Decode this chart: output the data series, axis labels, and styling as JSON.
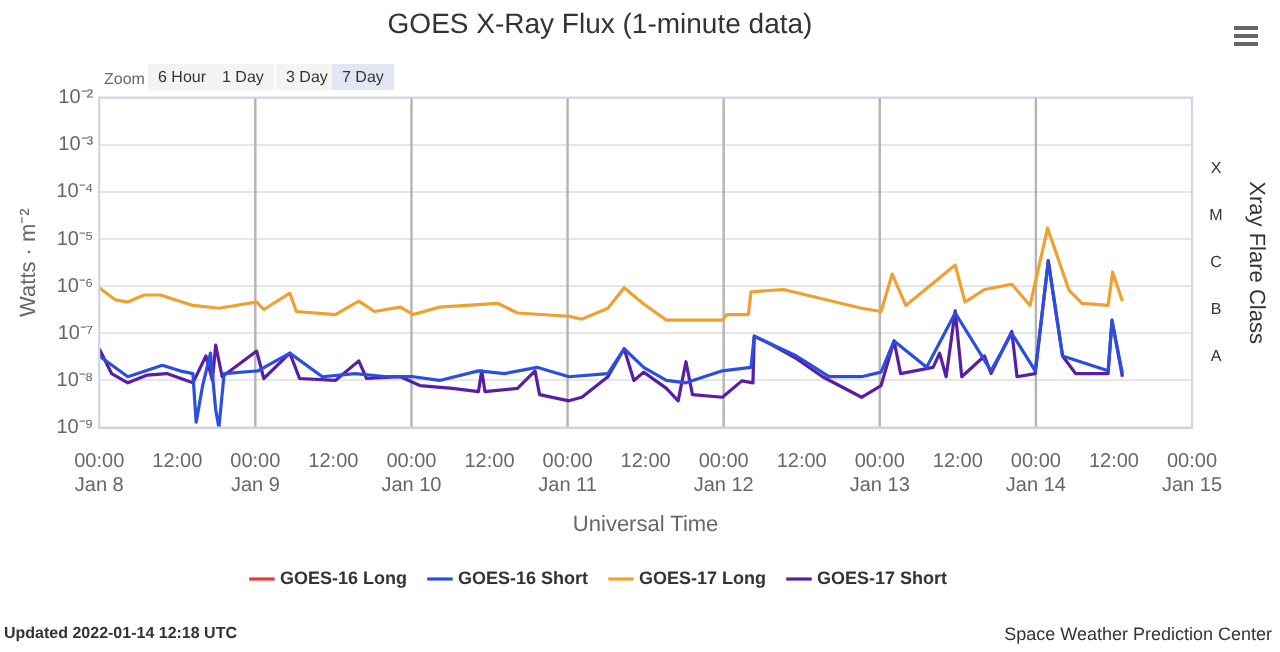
{
  "chart_data": {
    "type": "line",
    "title": "GOES X-Ray Flux (1-minute data)",
    "xlabel": "Universal Time",
    "ylabel": "Watts · m⁻²",
    "y2label": "Xray Flare Class",
    "xlim": [
      "--01-08T00:00",
      "--01-15T00:00"
    ],
    "xticks": [
      {
        "value": "--01-08T00:00",
        "label": "00:00\nJan 8"
      },
      {
        "value": "--01-08T12:00",
        "label": "12:00"
      },
      {
        "value": "--01-09T00:00",
        "label": "00:00\nJan 9"
      },
      {
        "value": "--01-09T12:00",
        "label": "12:00"
      },
      {
        "value": "--01-10T00:00",
        "label": "00:00\nJan 10"
      },
      {
        "value": "--01-10T12:00",
        "label": "12:00"
      },
      {
        "value": "--01-11T00:00",
        "label": "00:00\nJan 11"
      },
      {
        "value": "--01-11T12:00",
        "label": "12:00"
      },
      {
        "value": "--01-12T00:00",
        "label": "00:00\nJan 12"
      },
      {
        "value": "--01-12T12:00",
        "label": "12:00"
      },
      {
        "value": "--01-13T00:00",
        "label": "00:00\nJan 13"
      },
      {
        "value": "--01-13T12:00",
        "label": "12:00"
      },
      {
        "value": "--01-14T00:00",
        "label": "00:00\nJan 14"
      },
      {
        "value": "--01-14T12:00",
        "label": "12:00"
      },
      {
        "value": "--01-15T00:00",
        "label": "00:00\nJan 15"
      }
    ],
    "ylim": [
      1e-09,
      0.01
    ],
    "yticks": [
      {
        "value": 1e-09,
        "label": "10⁻⁹"
      },
      {
        "value": 1e-08,
        "label": "10⁻⁸"
      },
      {
        "value": 1e-07,
        "label": "10⁻⁷"
      },
      {
        "value": 1e-06,
        "label": "10⁻⁶"
      },
      {
        "value": 1e-05,
        "label": "10⁻⁵"
      },
      {
        "value": 0.0001,
        "label": "10⁻⁴"
      },
      {
        "value": 0.001,
        "label": "10⁻³"
      },
      {
        "value": 0.01,
        "label": "10⁻²"
      }
    ],
    "log": "y",
    "grid": "y",
    "legend": "bottom",
    "marker": "none",
    "ref_lines": [
      {
        "axis": "x",
        "value": "--01-09T00:00",
        "color": "#b4b4b4"
      },
      {
        "axis": "x",
        "value": "--01-10T00:00",
        "color": "#b4b4b4"
      },
      {
        "axis": "x",
        "value": "--01-11T00:00",
        "color": "#b4b4b4"
      },
      {
        "axis": "x",
        "value": "--01-12T00:00",
        "color": "#b4b4b4"
      },
      {
        "axis": "x",
        "value": "--01-13T00:00",
        "color": "#b4b4b4"
      },
      {
        "axis": "x",
        "value": "--01-14T00:00",
        "color": "#b4b4b4"
      }
    ],
    "annotations": [
      "Zoom",
      "6 Hour",
      "1 Day",
      "3 Day",
      "7 Day",
      "Updated 2022-01-14 12:18 UTC",
      "Space Weather Prediction Center",
      "A",
      "B",
      "C",
      "M",
      "X"
    ],
    "series": [
      {
        "name": "GOES-16 Long",
        "color": "#e83a3a"
      },
      {
        "name": "GOES-16 Short",
        "color": "#2a4ee0",
        "x": [
          "--01-08T00:00",
          "--01-08T04:24",
          "--01-08T09:42",
          "--01-08T12:24",
          "--01-08T14:24",
          "--01-08T14:54",
          "--01-08T15:54",
          "--01-08T17:06",
          "--01-08T17:54",
          "--01-08T18:24",
          "--01-08T19:12",
          "--01-09T00:24",
          "--01-09T05:18",
          "--01-09T10:18",
          "--01-09T15:18",
          "--01-09T20:18",
          "--01-10T00:18",
          "--01-10T04:18",
          "--01-10T10:18",
          "--01-10T14:18",
          "--01-10T19:18",
          "--01-11T00:12",
          "--01-11T06:12",
          "--01-11T08:42",
          "--01-11T11:42",
          "--01-11T15:12",
          "--01-11T18:12",
          "--01-11T23:48",
          "--01-12T04:12",
          "--01-12T04:42",
          "--01-12T11:12",
          "--01-12T16:12",
          "--01-12T21:12",
          "--01-13T00:12",
          "--01-13T02:12",
          "--01-13T07:12",
          "--01-13T11:36",
          "--01-13T17:06",
          "--01-13T20:18",
          "--01-13T23:54",
          "--01-14T01:54",
          "--01-14T04:06",
          "--01-14T11:06",
          "--01-14T11:42",
          "--01-14T13:18"
        ],
        "values": [
          3.3e-08,
          1.2e-08,
          2.1e-08,
          1.6e-08,
          1.4e-08,
          1.3e-09,
          7.8e-09,
          3.8e-08,
          2.4e-09,
          1e-09,
          1.4e-08,
          1.6e-08,
          3.8e-08,
          1.2e-08,
          1.4e-08,
          1.2e-08,
          1.2e-08,
          1e-08,
          1.6e-08,
          1.4e-08,
          1.9e-08,
          1.2e-08,
          1.4e-08,
          4.7e-08,
          1.9e-08,
          1e-08,
          8.9e-09,
          1.6e-08,
          1.9e-08,
          8.7e-08,
          3.3e-08,
          1.2e-08,
          1.2e-08,
          1.5e-08,
          6.9e-08,
          1.9e-08,
          2.7e-07,
          1.6e-08,
          1e-07,
          1.6e-08,
          3.3e-06,
          3.3e-08,
          1.6e-08,
          1.8e-07,
          1.4e-08
        ]
      },
      {
        "name": "GOES-17 Long",
        "color": "#f0a030",
        "x": [
          "--01-08T00:00",
          "--01-08T02:24",
          "--01-08T04:24",
          "--01-08T06:54",
          "--01-08T09:24",
          "--01-08T14:24",
          "--01-08T18:24",
          "--01-09T00:12",
          "--01-09T01:18",
          "--01-09T05:18",
          "--01-09T06:18",
          "--01-09T12:18",
          "--01-09T15:54",
          "--01-09T18:18",
          "--01-09T22:18",
          "--01-10T00:18",
          "--01-10T04:18",
          "--01-10T13:18",
          "--01-10T16:18",
          "--01-11T00:12",
          "--01-11T02:12",
          "--01-11T06:12",
          "--01-11T08:42",
          "--01-11T11:42",
          "--01-11T15:12",
          "--01-11T23:48",
          "--01-12T00:30",
          "--01-12T03:48",
          "--01-12T04:12",
          "--01-12T09:12",
          "--01-12T21:12",
          "--01-13T00:12",
          "--01-13T01:54",
          "--01-13T04:00",
          "--01-13T11:36",
          "--01-13T13:06",
          "--01-13T16:06",
          "--01-13T20:18",
          "--01-13T23:06",
          "--01-14T01:48",
          "--01-14T05:06",
          "--01-14T07:06",
          "--01-14T11:06",
          "--01-14T11:48",
          "--01-14T13:18"
        ],
        "values": [
          9.3e-07,
          5.2e-07,
          4.6e-07,
          6.5e-07,
          6.5e-07,
          3.9e-07,
          3.4e-07,
          4.6e-07,
          3.2e-07,
          7.1e-07,
          2.9e-07,
          2.5e-07,
          4.8e-07,
          2.9e-07,
          3.6e-07,
          2.5e-07,
          3.6e-07,
          4.3e-07,
          2.7e-07,
          2.3e-07,
          2e-07,
          3.4e-07,
          9.3e-07,
          4.2e-07,
          1.9e-07,
          1.9e-07,
          2.5e-07,
          2.5e-07,
          7.6e-07,
          8.5e-07,
          3.4e-07,
          2.9e-07,
          1.8e-06,
          3.9e-07,
          2.8e-06,
          4.6e-07,
          8.5e-07,
          1.1e-06,
          3.9e-07,
          1.7e-05,
          8.1e-07,
          4.3e-07,
          3.9e-07,
          2e-06,
          4.8e-07
        ]
      },
      {
        "name": "GOES-17 Short",
        "color": "#5a1ea6",
        "x": [
          "--01-08T00:00",
          "--01-08T01:54",
          "--01-08T04:24",
          "--01-08T07:24",
          "--01-08T10:24",
          "--01-08T14:24",
          "--01-08T16:24",
          "--01-08T17:24",
          "--01-08T17:54",
          "--01-08T18:54",
          "--01-09T00:12",
          "--01-09T01:18",
          "--01-09T05:18",
          "--01-09T06:48",
          "--01-09T12:18",
          "--01-09T15:54",
          "--01-09T17:06",
          "--01-09T22:18",
          "--01-10T01:18",
          "--01-10T06:18",
          "--01-10T10:18",
          "--01-10T10:48",
          "--01-10T11:18",
          "--01-10T16:18",
          "--01-10T19:00",
          "--01-10T19:42",
          "--01-11T00:12",
          "--01-11T02:12",
          "--01-11T06:12",
          "--01-11T08:42",
          "--01-11T10:12",
          "--01-11T11:42",
          "--01-11T15:12",
          "--01-11T17:00",
          "--01-11T18:12",
          "--01-11T19:12",
          "--01-11T23:48",
          "--01-12T02:48",
          "--01-12T04:30",
          "--01-12T04:42",
          "--01-12T07:12",
          "--01-12T11:12",
          "--01-12T15:12",
          "--01-12T21:12",
          "--01-13T00:12",
          "--01-13T02:12",
          "--01-13T03:12",
          "--01-13T08:12",
          "--01-13T09:12",
          "--01-13T10:12",
          "--01-13T11:36",
          "--01-13T12:36",
          "--01-13T16:06",
          "--01-13T17:06",
          "--01-13T20:18",
          "--01-13T21:06",
          "--01-13T23:54",
          "--01-14T01:54",
          "--01-14T04:06",
          "--01-14T06:06",
          "--01-14T11:06",
          "--01-14T11:42",
          "--01-14T13:18"
        ],
        "values": [
          4.7e-08,
          1.4e-08,
          8.9e-09,
          1.3e-08,
          1.4e-08,
          8.9e-09,
          3.3e-08,
          1e-08,
          5.6e-08,
          1.2e-08,
          4.2e-08,
          1.1e-08,
          3.8e-08,
          1.1e-08,
          1e-08,
          2.6e-08,
          1.1e-08,
          1.2e-08,
          7.8e-09,
          6.8e-09,
          5.8e-09,
          1.6e-08,
          5.8e-09,
          6.8e-09,
          1.6e-08,
          5e-09,
          3.7e-09,
          4.4e-09,
          1.2e-08,
          4.7e-08,
          1e-08,
          1.5e-08,
          6.8e-09,
          3.7e-09,
          2.5e-08,
          5e-09,
          4.4e-09,
          9.8e-09,
          8.9e-09,
          8.7e-08,
          5.9e-08,
          2.9e-08,
          1.2e-08,
          4.4e-09,
          7.8e-09,
          6.9e-08,
          1.4e-08,
          1.9e-08,
          3.8e-08,
          1.2e-08,
          3e-07,
          1.2e-08,
          3.3e-08,
          1.4e-08,
          1.1e-07,
          1.2e-08,
          1.4e-08,
          3.5e-06,
          3.3e-08,
          1.4e-08,
          1.4e-08,
          1.9e-07,
          1.2e-08
        ]
      }
    ]
  }
}
